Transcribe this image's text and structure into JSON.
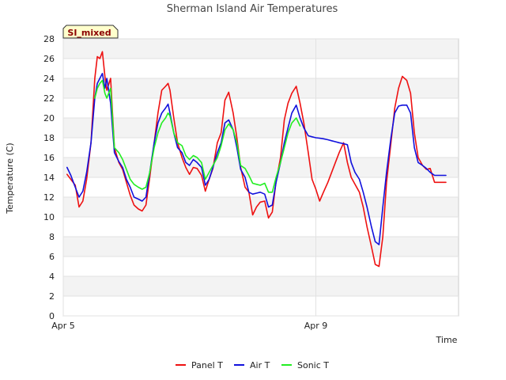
{
  "chart_data": {
    "type": "line",
    "title": "Sherman Island Air Temperatures",
    "xlabel": "Time",
    "ylabel": "Temperature (C)",
    "badge": "SI_mixed",
    "ylim": [
      0,
      28
    ],
    "yticks": [
      0,
      2,
      4,
      6,
      8,
      10,
      12,
      14,
      16,
      18,
      20,
      22,
      24,
      26,
      28
    ],
    "xlim": [
      0,
      6.26
    ],
    "xticks": [
      {
        "value": 0,
        "label": "Apr 5"
      },
      {
        "value": 4,
        "label": "Apr 9"
      }
    ],
    "colors": {
      "Panel T": "#ee1111",
      "Air T": "#1111dd",
      "Sonic T": "#22ee22"
    },
    "series": [
      {
        "name": "Panel T",
        "x": [
          0.06,
          0.12,
          0.19,
          0.25,
          0.31,
          0.37,
          0.44,
          0.5,
          0.54,
          0.58,
          0.62,
          0.66,
          0.69,
          0.75,
          0.81,
          0.88,
          0.94,
          1.0,
          1.06,
          1.12,
          1.19,
          1.25,
          1.31,
          1.37,
          1.44,
          1.5,
          1.56,
          1.62,
          1.66,
          1.69,
          1.75,
          1.81,
          1.88,
          1.94,
          2.0,
          2.06,
          2.12,
          2.19,
          2.25,
          2.31,
          2.37,
          2.44,
          2.5,
          2.56,
          2.62,
          2.69,
          2.75,
          2.81,
          2.88,
          2.94,
          3.0,
          3.06,
          3.12,
          3.19,
          3.25,
          3.31,
          3.37,
          3.44,
          3.5,
          3.56,
          3.62,
          3.69,
          3.75,
          3.81,
          3.88,
          3.94,
          4.0,
          4.06,
          4.12,
          4.19,
          4.25,
          4.31,
          4.37,
          4.44,
          4.5,
          4.56,
          4.62,
          4.69,
          4.75,
          4.81,
          4.88,
          4.94,
          5.0,
          5.06,
          5.12,
          5.19,
          5.25,
          5.31,
          5.37,
          5.44,
          5.5,
          5.56,
          5.62,
          5.69,
          5.75,
          5.81,
          5.88,
          5.94,
          6.0,
          6.06
        ],
        "values": [
          14.3,
          13.8,
          13.2,
          11.0,
          11.6,
          13.8,
          17.5,
          24.0,
          26.2,
          26.0,
          26.7,
          24.2,
          22.8,
          24.0,
          17.0,
          15.5,
          14.8,
          13.5,
          12.2,
          11.2,
          10.8,
          10.6,
          11.2,
          14.0,
          17.5,
          20.5,
          22.8,
          23.2,
          23.5,
          22.8,
          20.0,
          17.5,
          16.0,
          15.0,
          14.3,
          15.0,
          14.9,
          14.2,
          12.6,
          13.8,
          14.9,
          17.5,
          18.5,
          21.8,
          22.6,
          20.5,
          18.0,
          15.0,
          13.0,
          12.5,
          10.2,
          11.0,
          11.5,
          11.6,
          9.9,
          10.5,
          13.6,
          16.0,
          19.8,
          21.5,
          22.5,
          23.2,
          21.5,
          19.5,
          16.5,
          13.8,
          12.8,
          11.6,
          12.5,
          13.5,
          14.5,
          15.5,
          16.5,
          17.5,
          15.5,
          14.0,
          13.3,
          12.5,
          11.0,
          9.0,
          7.0,
          5.2,
          5.0,
          8.0,
          13.5,
          17.5,
          21.0,
          23.0,
          24.2,
          23.8,
          22.5,
          18.5,
          16.0,
          15.2,
          14.8,
          14.9,
          13.5,
          13.5,
          13.5,
          13.5
        ]
      },
      {
        "name": "Air T",
        "x": [
          0.06,
          0.12,
          0.19,
          0.25,
          0.31,
          0.37,
          0.44,
          0.5,
          0.54,
          0.58,
          0.62,
          0.66,
          0.69,
          0.75,
          0.81,
          0.88,
          0.94,
          1.0,
          1.06,
          1.12,
          1.19,
          1.25,
          1.31,
          1.37,
          1.44,
          1.5,
          1.56,
          1.62,
          1.66,
          1.69,
          1.75,
          1.81,
          1.88,
          1.94,
          2.0,
          2.06,
          2.12,
          2.19,
          2.25,
          2.31,
          2.37,
          2.44,
          2.5,
          2.56,
          2.62,
          2.69,
          2.75,
          2.81,
          2.88,
          2.94,
          3.0,
          3.06,
          3.12,
          3.19,
          3.25,
          3.31,
          3.37,
          3.44,
          3.5,
          3.56,
          3.62,
          3.69,
          3.75,
          3.81,
          3.88,
          3.94,
          4.0,
          4.06,
          4.12,
          4.19,
          4.25,
          4.31,
          4.37,
          4.44,
          4.5,
          4.56,
          4.62,
          4.69,
          4.75,
          4.81,
          4.88,
          4.94,
          5.0,
          5.06,
          5.12,
          5.19,
          5.25,
          5.31,
          5.37,
          5.44,
          5.5,
          5.56,
          5.62,
          5.69,
          5.75,
          5.81,
          5.88,
          5.94,
          6.0,
          6.06
        ],
        "values": [
          15.0,
          14.2,
          13.0,
          12.0,
          12.6,
          14.5,
          17.5,
          22.0,
          23.5,
          24.0,
          24.5,
          23.0,
          24.0,
          21.5,
          16.5,
          15.6,
          15.0,
          13.8,
          13.0,
          12.0,
          11.8,
          11.6,
          12.0,
          14.5,
          17.5,
          19.5,
          20.5,
          21.0,
          21.4,
          20.5,
          18.5,
          17.0,
          16.5,
          15.5,
          15.2,
          15.8,
          15.5,
          15.0,
          13.2,
          13.8,
          15.0,
          16.5,
          17.5,
          19.5,
          19.8,
          18.8,
          17.0,
          14.8,
          14.0,
          12.5,
          12.3,
          12.4,
          12.5,
          12.3,
          11.0,
          11.2,
          13.5,
          15.5,
          17.5,
          19.0,
          20.5,
          21.3,
          20.0,
          19.0,
          18.2,
          18.1,
          18.0,
          17.95,
          17.9,
          17.8,
          17.7,
          17.6,
          17.5,
          17.4,
          17.3,
          15.5,
          14.5,
          13.8,
          12.5,
          11.0,
          9.0,
          7.5,
          7.2,
          11.0,
          14.5,
          18.0,
          20.5,
          21.2,
          21.3,
          21.3,
          20.5,
          17.0,
          15.5,
          15.2,
          14.9,
          14.5,
          14.2,
          14.2,
          14.2,
          14.2
        ]
      },
      {
        "name": "Sonic T",
        "x": [
          0.5,
          0.54,
          0.58,
          0.62,
          0.66,
          0.69,
          0.75,
          0.81,
          0.88,
          0.94,
          1.0,
          1.06,
          1.12,
          1.19,
          1.25,
          1.31,
          1.37,
          1.44,
          1.5,
          1.56,
          1.62,
          1.66,
          1.69,
          1.75,
          1.81,
          1.88,
          1.94,
          2.0,
          2.06,
          2.12,
          2.19,
          2.25,
          2.31,
          2.37,
          2.44,
          2.5,
          2.56,
          2.62,
          2.69,
          2.75,
          2.81,
          2.88,
          2.94,
          3.0,
          3.06,
          3.12,
          3.19,
          3.25,
          3.31,
          3.37,
          3.44,
          3.5,
          3.56,
          3.62,
          3.69,
          3.75
        ],
        "values": [
          22.0,
          23.0,
          23.5,
          23.8,
          22.5,
          22.0,
          23.0,
          17.0,
          16.5,
          15.8,
          14.8,
          13.8,
          13.3,
          13.0,
          12.8,
          13.0,
          14.5,
          17.0,
          18.5,
          19.5,
          20.0,
          20.5,
          20.2,
          18.5,
          17.5,
          17.2,
          16.2,
          15.8,
          16.2,
          16.0,
          15.5,
          13.8,
          14.5,
          15.2,
          16.0,
          17.2,
          18.8,
          19.4,
          18.8,
          17.5,
          15.2,
          14.9,
          14.2,
          13.4,
          13.3,
          13.2,
          13.4,
          12.5,
          12.5,
          14.0,
          15.5,
          17.0,
          18.5,
          19.5,
          20.0,
          19.2
        ]
      }
    ],
    "legend": [
      "Panel T",
      "Air T",
      "Sonic T"
    ],
    "legend_position": "bottom"
  }
}
